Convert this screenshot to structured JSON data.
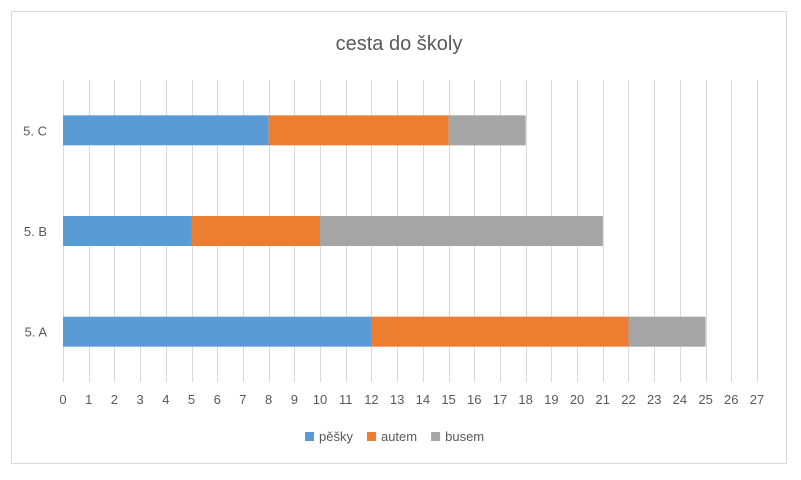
{
  "chart_data": {
    "type": "bar",
    "orientation": "horizontal",
    "stacked": true,
    "title": "cesta do školy",
    "categories": [
      "5. A",
      "5. B",
      "5. C"
    ],
    "series": [
      {
        "name": "pěšky",
        "color": "#5B9BD5",
        "values": [
          12,
          5,
          8
        ]
      },
      {
        "name": "autem",
        "color": "#ED7D31",
        "values": [
          10,
          5,
          7
        ]
      },
      {
        "name": "busem",
        "color": "#A5A5A5",
        "values": [
          3,
          11,
          3
        ]
      }
    ],
    "xlim": [
      0,
      27
    ],
    "xticks": [
      0,
      1,
      2,
      3,
      4,
      5,
      6,
      7,
      8,
      9,
      10,
      11,
      12,
      13,
      14,
      15,
      16,
      17,
      18,
      19,
      20,
      21,
      22,
      23,
      24,
      25,
      26,
      27
    ],
    "xlabel": "",
    "ylabel": "",
    "grid": true,
    "legend": "bottom"
  }
}
